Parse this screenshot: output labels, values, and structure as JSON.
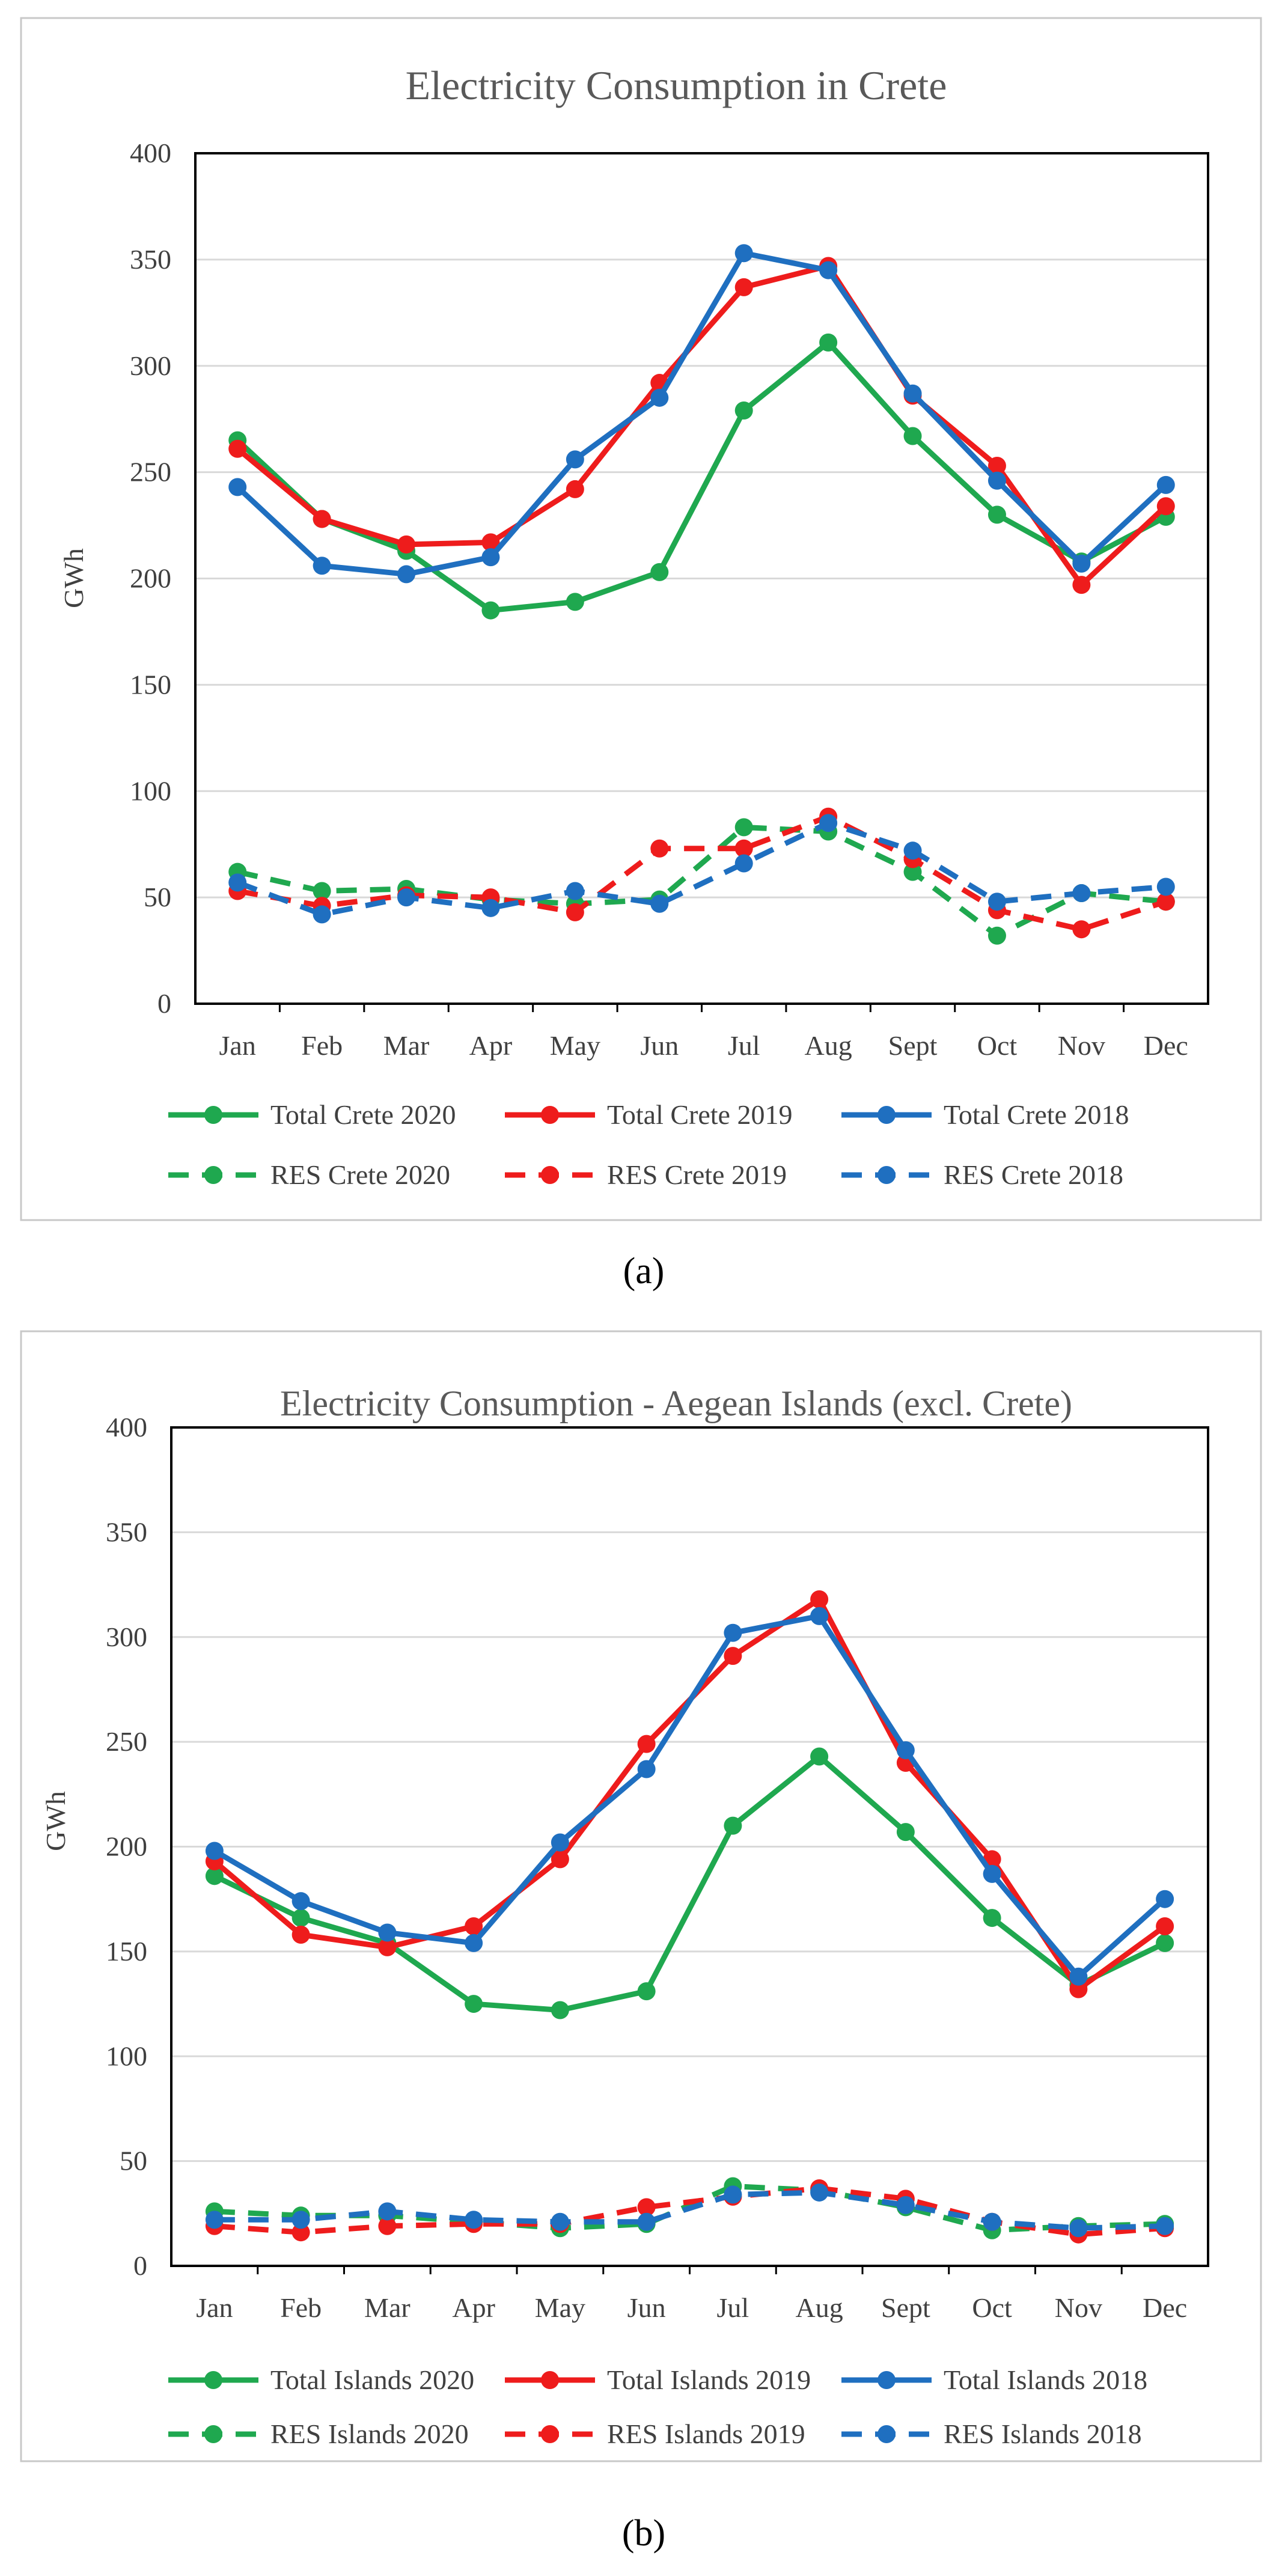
{
  "captions": [
    "(a)",
    "(b)"
  ],
  "chart_data": [
    {
      "type": "line",
      "title": "Electricity Consumption in Crete",
      "xlabel": "",
      "ylabel": "GWh",
      "categories": [
        "Jan",
        "Feb",
        "Mar",
        "Apr",
        "May",
        "Jun",
        "Jul",
        "Aug",
        "Sept",
        "Oct",
        "Nov",
        "Dec"
      ],
      "ylim": [
        0,
        400
      ],
      "yticks": [
        0,
        50,
        100,
        150,
        200,
        250,
        300,
        350,
        400
      ],
      "grid": true,
      "legend_position": "bottom",
      "series": [
        {
          "name": "Total Crete 2020",
          "color": "#1fa84f",
          "dashed": false,
          "values": [
            265,
            228,
            213,
            185,
            189,
            203,
            279,
            311,
            267,
            230,
            208,
            229
          ]
        },
        {
          "name": "Total Crete 2019",
          "color": "#ee1c1c",
          "dashed": false,
          "values": [
            261,
            228,
            216,
            217,
            242,
            292,
            337,
            347,
            286,
            253,
            197,
            234
          ]
        },
        {
          "name": "Total Crete 2018",
          "color": "#1f6fc0",
          "dashed": false,
          "values": [
            243,
            206,
            202,
            210,
            256,
            285,
            353,
            345,
            287,
            246,
            207,
            244
          ]
        },
        {
          "name": "RES Crete 2020",
          "color": "#1fa84f",
          "dashed": true,
          "values": [
            62,
            53,
            54,
            49,
            47,
            49,
            83,
            81,
            62,
            32,
            52,
            48
          ]
        },
        {
          "name": "RES Crete 2019",
          "color": "#ee1c1c",
          "dashed": true,
          "values": [
            53,
            46,
            51,
            50,
            43,
            73,
            73,
            88,
            68,
            44,
            35,
            48
          ]
        },
        {
          "name": "RES Crete 2018",
          "color": "#1f6fc0",
          "dashed": true,
          "values": [
            57,
            42,
            50,
            45,
            53,
            47,
            66,
            85,
            72,
            48,
            52,
            55
          ]
        }
      ]
    },
    {
      "type": "line",
      "title": "Electricity Consumption - Aegean Islands (excl. Crete)",
      "xlabel": "",
      "ylabel": "GWh",
      "categories": [
        "Jan",
        "Feb",
        "Mar",
        "Apr",
        "May",
        "Jun",
        "Jul",
        "Aug",
        "Sept",
        "Oct",
        "Nov",
        "Dec"
      ],
      "ylim": [
        0,
        400
      ],
      "yticks": [
        0,
        50,
        100,
        150,
        200,
        250,
        300,
        350,
        400
      ],
      "grid": true,
      "legend_position": "bottom",
      "series": [
        {
          "name": "Total Islands 2020",
          "color": "#1fa84f",
          "dashed": false,
          "values": [
            186,
            166,
            154,
            125,
            122,
            131,
            210,
            243,
            207,
            166,
            134,
            154
          ]
        },
        {
          "name": "Total Islands 2019",
          "color": "#ee1c1c",
          "dashed": false,
          "values": [
            193,
            158,
            152,
            162,
            194,
            249,
            291,
            318,
            240,
            194,
            132,
            162
          ]
        },
        {
          "name": "Total Islands 2018",
          "color": "#1f6fc0",
          "dashed": false,
          "values": [
            198,
            174,
            159,
            154,
            202,
            237,
            302,
            310,
            246,
            187,
            138,
            175
          ]
        },
        {
          "name": "RES Islands 2020",
          "color": "#1fa84f",
          "dashed": true,
          "values": [
            26,
            24,
            24,
            21,
            18,
            20,
            38,
            36,
            28,
            17,
            19,
            20
          ]
        },
        {
          "name": "RES Islands 2019",
          "color": "#ee1c1c",
          "dashed": true,
          "values": [
            19,
            16,
            19,
            20,
            20,
            28,
            33,
            37,
            32,
            21,
            15,
            18
          ]
        },
        {
          "name": "RES Islands 2018",
          "color": "#1f6fc0",
          "dashed": true,
          "values": [
            22,
            22,
            26,
            22,
            21,
            21,
            34,
            35,
            29,
            21,
            18,
            19
          ]
        }
      ]
    }
  ]
}
